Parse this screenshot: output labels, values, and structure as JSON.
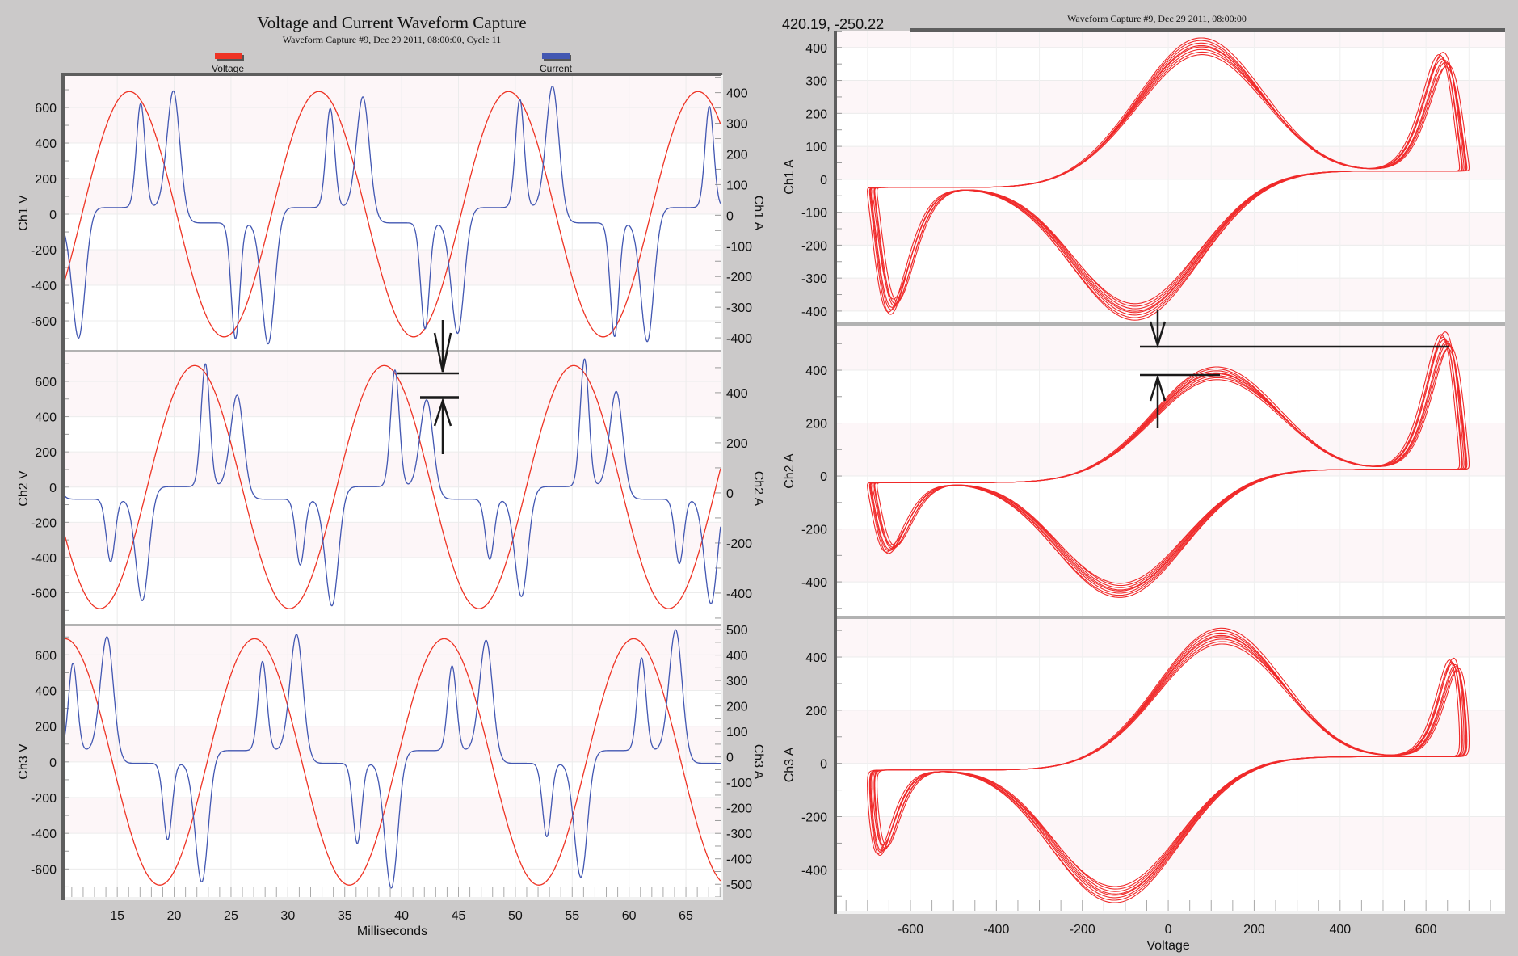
{
  "waveform_view": {
    "title": "Voltage and Current Waveform Capture",
    "subtitle": "Waveform Capture #9, Dec 29 2011, 08:00:00,  Cycle 11",
    "legend": [
      {
        "label": "Voltage",
        "color": "#ee3324"
      },
      {
        "label": "Current",
        "color": "#4257b2"
      }
    ]
  },
  "lissajous_view": {
    "title": "Waveform Capture #9, Dec 29 2011, 08:00:00",
    "cursor_readout": "420.19, -250.22"
  },
  "chart_data": [
    {
      "type": "line",
      "title": "Voltage and Current Waveform Capture",
      "subtitle": "Waveform Capture #9, Dec 29 2011, 08:00:00,  Cycle 11",
      "xlabel": "Milliseconds",
      "xlim": [
        10.3,
        68.05
      ],
      "xticks": [
        15,
        20,
        25,
        30,
        35,
        40,
        45,
        50,
        55,
        60,
        65
      ],
      "grid": true,
      "legend_placement": "top",
      "series": [
        {
          "name": "Voltage",
          "color": "#ee3324",
          "axis": "left"
        },
        {
          "name": "Current",
          "color": "#4257b2",
          "axis": "right"
        }
      ],
      "panels": [
        {
          "ylabel_left": "Ch1 V",
          "ylabel_right": "Ch1 A",
          "ylim_left": [
            -768,
            782
          ],
          "ylim_right": [
            -442,
            457
          ],
          "yticks_left": [
            600,
            400,
            200,
            0,
            -200,
            -400,
            -600
          ],
          "yticks_right": [
            400,
            300,
            200,
            100,
            0,
            -100,
            -200,
            -300,
            -400
          ],
          "voltage": {
            "amplitude": 690,
            "period_ms": 16.667,
            "first_peak_ms": 16.06
          },
          "current": {
            "peak_offsets_ms": [
              1.0,
              3.9
            ],
            "positive_peaks": [
              340,
              390
            ],
            "negative_peaks": [
              -360,
              -385
            ]
          }
        },
        {
          "ylabel_left": "Ch2 V",
          "ylabel_right": "Ch2 A",
          "ylim_left": [
            -781,
            765
          ],
          "ylim_right": [
            -526,
            561
          ],
          "yticks_left": [
            600,
            400,
            200,
            0,
            -200,
            -400,
            -600
          ],
          "yticks_right": [
            400,
            200,
            0,
            -200,
            -400
          ],
          "voltage": {
            "amplitude": 690,
            "period_ms": 16.667,
            "first_peak_ms": 21.8
          },
          "current": {
            "peak_offsets_ms": [
              0.95,
              3.75
            ],
            "positive_peaks": [
              490,
              370
            ],
            "negative_peaks": [
              -250,
              -410
            ]
          }
        },
        {
          "ylabel_left": "Ch3 V",
          "ylabel_right": "Ch3 A",
          "ylim_left": [
            -757,
            760
          ],
          "ylim_right": [
            -550,
            513
          ],
          "yticks_left": [
            600,
            400,
            200,
            0,
            -200,
            -400,
            -600
          ],
          "yticks_right": [
            500,
            400,
            300,
            200,
            100,
            0,
            -100,
            -200,
            -300,
            -400,
            -500
          ],
          "voltage": {
            "amplitude": 690,
            "period_ms": 16.667,
            "first_peak_ms": 27.07
          },
          "current": {
            "peak_offsets_ms": [
              0.7,
              3.7
            ],
            "positive_peaks": [
              350,
              460
            ],
            "negative_peaks": [
              -300,
              -470
            ]
          }
        }
      ]
    },
    {
      "type": "line",
      "title": "Waveform Capture #9, Dec 29 2011, 08:00:00",
      "xlabel": "Voltage",
      "xlim": [
        -773,
        784
      ],
      "xticks": [
        -600,
        -400,
        -200,
        0,
        200,
        400,
        600
      ],
      "grid": true,
      "color": "#f02a2a",
      "cycles_overlaid": 8,
      "panels": [
        {
          "ylabel": "Ch1 A",
          "ylim": [
            -437,
            451
          ],
          "yticks": [
            400,
            300,
            200,
            100,
            0,
            -100,
            -200,
            -300,
            -400
          ]
        },
        {
          "ylabel": "Ch2 A",
          "ylim": [
            -531,
            568
          ],
          "yticks": [
            400,
            200,
            0,
            -200,
            -400
          ]
        },
        {
          "ylabel": "Ch3 A",
          "ylim": [
            -554,
            543
          ],
          "yticks": [
            400,
            200,
            0,
            -200,
            -400
          ]
        }
      ]
    }
  ]
}
